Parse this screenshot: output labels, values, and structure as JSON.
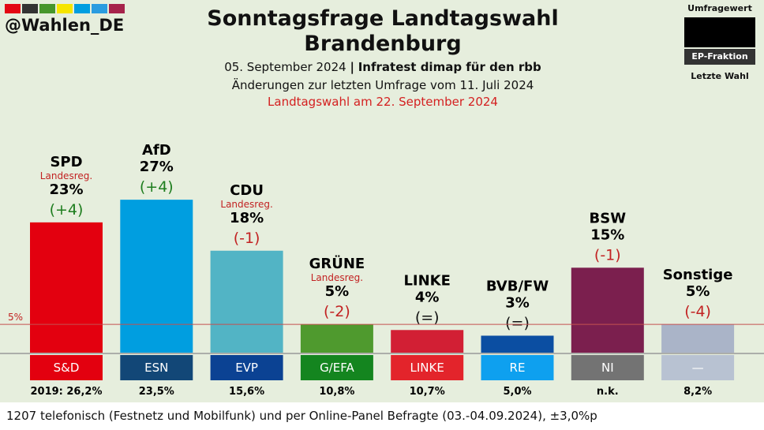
{
  "header": {
    "handle": "@Wahlen_DE",
    "brand_colors": [
      "#e30613",
      "#333333",
      "#46962b",
      "#f6e500",
      "#009ee0",
      "#2a9ce0",
      "#a6234b"
    ],
    "title_line1": "Sonntagsfrage Landtagswahl",
    "title_line2": "Brandenburg",
    "date": "05. September 2024",
    "sep": "|",
    "source": "Infratest dimap für den rbb",
    "changes": "Änderungen zur letzten Umfrage vom 11. Juli 2024",
    "election": "Landtagswahl am 22. September 2024"
  },
  "legend": {
    "top": "Umfragewert",
    "middle": "EP-Fraktion",
    "bottom": "Letzte Wahl"
  },
  "footer": {
    "text": "1207 telefonisch (Festnetz und Mobilfunk) und per Online-Panel Befragte (03.-04.09.2024), ±3,0%p"
  },
  "chart_data": {
    "type": "bar",
    "title": "Sonntagsfrage Landtagswahl Brandenburg",
    "threshold": 5,
    "threshold_label": "5%",
    "ylim": [
      0,
      30
    ],
    "categories": [
      "SPD",
      "AfD",
      "CDU",
      "GRÜNE",
      "LINKE",
      "BVB/FW",
      "BSW",
      "Sonstige"
    ],
    "values": [
      23,
      27,
      18,
      5,
      4,
      3,
      15,
      5
    ],
    "value_labels": [
      "23%",
      "27%",
      "18%",
      "5%",
      "4%",
      "3%",
      "15%",
      "5%"
    ],
    "changes": [
      "(+4)",
      "(+4)",
      "(-1)",
      "(-2)",
      "(=)",
      "(=)",
      "(-1)",
      "(-4)"
    ],
    "notes": [
      "Landesreg.",
      "",
      "Landesreg.",
      "Landesreg.",
      "",
      "",
      "",
      ""
    ],
    "ep_factions": [
      "S&D",
      "ESN",
      "EVP",
      "G/EFA",
      "LINKE",
      "RE",
      "NI",
      "—"
    ],
    "last_election": [
      "2019: 26,2%",
      "23,5%",
      "15,6%",
      "10,8%",
      "10,7%",
      "5,0%",
      "n.k.",
      "8,2%"
    ],
    "bar_colors": [
      "#e3000f",
      "#009ee0",
      "#52b4c5",
      "#4f9a2e",
      "#d21f34",
      "#0b4ea2",
      "#7b1f4e",
      "#aab4c8"
    ],
    "faction_colors": [
      "#e3000f",
      "#124777",
      "#0b4293",
      "#14851f",
      "#e3242b",
      "#0ea0ef",
      "#737373",
      "#b8c2d2"
    ],
    "change_colors": [
      "#1e7d1e",
      "#1e7d1e",
      "#c22222",
      "#c22222",
      "#111111",
      "#111111",
      "#c22222",
      "#c22222"
    ]
  }
}
